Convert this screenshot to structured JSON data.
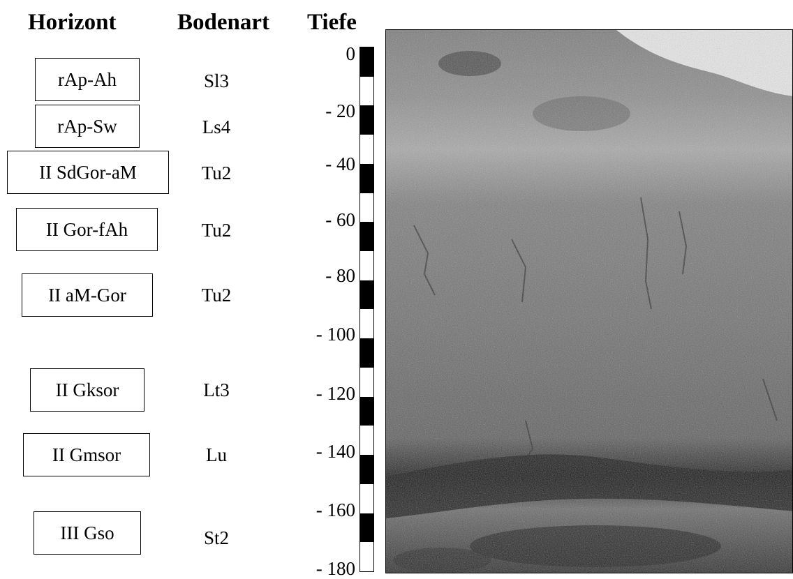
{
  "headers": {
    "horizon": "Horizont",
    "soil_type": "Bodenart",
    "depth": "Tiefe"
  },
  "horizons": [
    {
      "name": "rAp-Ah",
      "soil": "Sl3"
    },
    {
      "name": "rAp-Sw",
      "soil": "Ls4"
    },
    {
      "name": "II SdGor-aM",
      "soil": "Tu2"
    },
    {
      "name": "II Gor-fAh",
      "soil": "Tu2"
    },
    {
      "name": "II aM-Gor",
      "soil": "Tu2"
    },
    {
      "name": "II Gksor",
      "soil": "Lt3"
    },
    {
      "name": "II Gmsor",
      "soil": "Lu"
    },
    {
      "name": "III Gso",
      "soil": "St2"
    }
  ],
  "depth_ticks": [
    "0",
    "- 20",
    "- 40",
    "- 60",
    "- 80",
    "- 100",
    "- 120",
    "- 140",
    "- 160",
    "- 180"
  ],
  "scale_segments": 18,
  "colors": {
    "scale_dark": "#000000",
    "scale_light": "#ffffff",
    "box_border": "#000000"
  },
  "photo": {
    "description_icon": "soil-profile-photo"
  }
}
